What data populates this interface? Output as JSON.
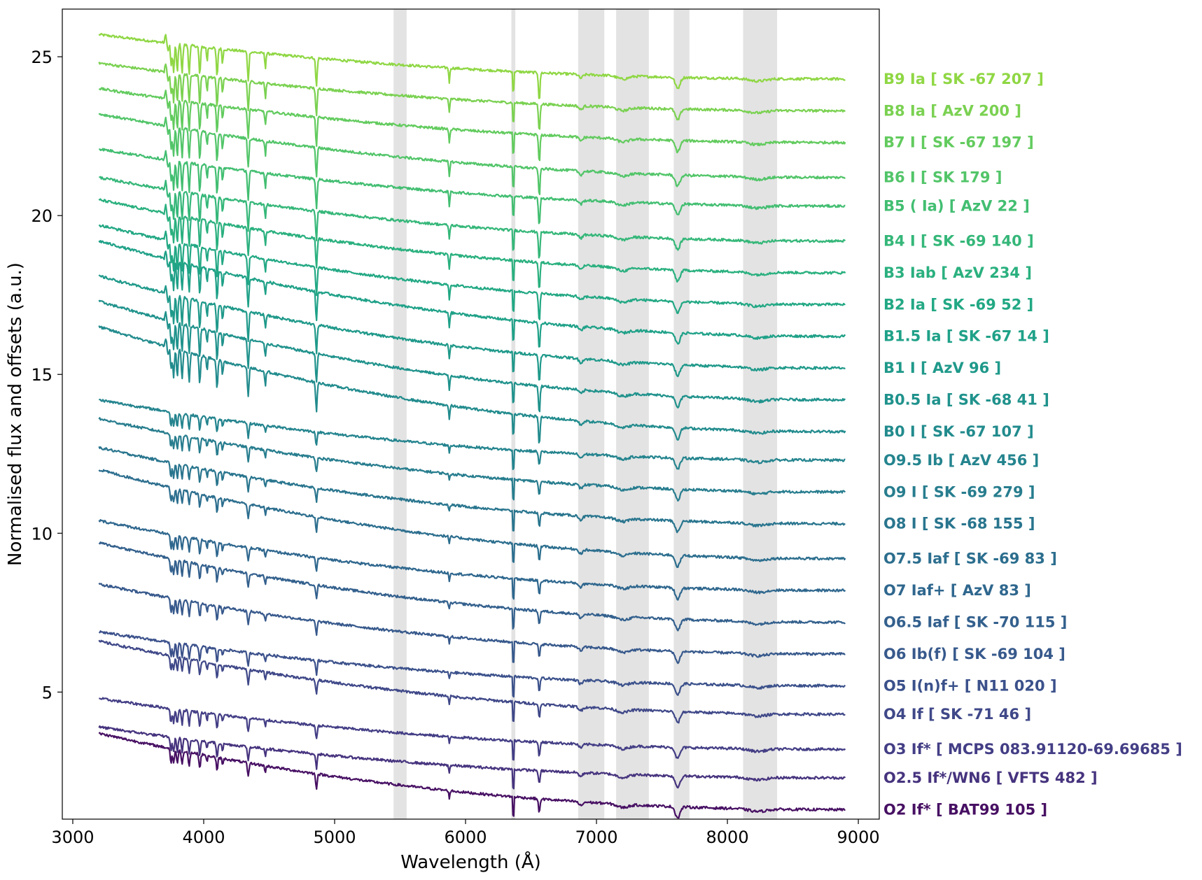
{
  "chart_data": {
    "type": "line",
    "xlabel": "Wavelength (Å)",
    "ylabel": "Normalised flux and offsets (a.u.)",
    "xlim": [
      2920,
      9160
    ],
    "ylim": [
      1.0,
      26.5
    ],
    "x_ticks": [
      3000,
      4000,
      5000,
      6000,
      7000,
      8000,
      9000
    ],
    "y_ticks": [
      5,
      10,
      15,
      20,
      25
    ],
    "grid": false,
    "x_range_data": [
      3200,
      8900
    ],
    "shaded_bands": [
      [
        5450,
        5550
      ],
      [
        6350,
        6380
      ],
      [
        6860,
        7060
      ],
      [
        7150,
        7400
      ],
      [
        7590,
        7710
      ],
      [
        8120,
        8380
      ]
    ],
    "series": [
      {
        "name": "B9 Ia [ SK -67 207 ]",
        "color": "#8fd744",
        "start": 25.7,
        "end": 24.3,
        "balmer": true
      },
      {
        "name": "B8 Ia [ AzV 200 ]",
        "color": "#7ad151",
        "start": 24.8,
        "end": 23.3,
        "balmer": true
      },
      {
        "name": "B7 I [ SK -67 197 ]",
        "color": "#62cb5e",
        "start": 24.0,
        "end": 22.3,
        "balmer": true
      },
      {
        "name": "B6 I [ SK 179 ]",
        "color": "#52c569",
        "start": 23.2,
        "end": 21.2,
        "balmer": true
      },
      {
        "name": "B5 ( Ia) [ AzV 22 ]",
        "color": "#42be71",
        "start": 22.1,
        "end": 20.3,
        "balmer": true
      },
      {
        "name": "B4 I [ SK -69 140 ]",
        "color": "#35b779",
        "start": 21.2,
        "end": 19.2,
        "balmer": true
      },
      {
        "name": "B3 Iab [ AzV 234 ]",
        "color": "#2ab07f",
        "start": 20.5,
        "end": 18.2,
        "balmer": true
      },
      {
        "name": "B2 Ia [ SK -69 52 ]",
        "color": "#22a884",
        "start": 19.7,
        "end": 17.2,
        "balmer": true
      },
      {
        "name": "B1.5 Ia [ SK -67 14 ]",
        "color": "#1fa188",
        "start": 19.2,
        "end": 16.2,
        "balmer": true
      },
      {
        "name": "B1 I [ AzV 96 ]",
        "color": "#1f998a",
        "start": 18.1,
        "end": 15.2,
        "balmer": true
      },
      {
        "name": "B0.5 Ia [ SK -68 41 ]",
        "color": "#20928c",
        "start": 17.3,
        "end": 14.2,
        "balmer": true
      },
      {
        "name": "B0 I [ SK -67 107 ]",
        "color": "#228b8d",
        "start": 16.5,
        "end": 13.2,
        "balmer": true
      },
      {
        "name": "O9.5 Ib [ AzV 456 ]",
        "color": "#24848e",
        "start": 14.2,
        "end": 12.3,
        "balmer": false
      },
      {
        "name": "O9 I [ SK -69 279 ]",
        "color": "#277d8e",
        "start": 13.6,
        "end": 11.3,
        "balmer": false
      },
      {
        "name": "O8 I [ SK -68 155 ]",
        "color": "#29758e",
        "start": 12.7,
        "end": 10.3,
        "balmer": false
      },
      {
        "name": "O7.5 Iaf [ SK -69 83 ]",
        "color": "#2c6e8e",
        "start": 12.0,
        "end": 9.2,
        "balmer": false
      },
      {
        "name": "O7 Iaf+ [ AzV 83 ]",
        "color": "#2f678e",
        "start": 10.4,
        "end": 8.2,
        "balmer": false
      },
      {
        "name": "O6.5 Iaf [ SK -70 115 ]",
        "color": "#33608d",
        "start": 9.7,
        "end": 7.2,
        "balmer": false
      },
      {
        "name": "O6 Ib(f) [ SK -69 104 ]",
        "color": "#37598c",
        "start": 8.4,
        "end": 6.2,
        "balmer": false
      },
      {
        "name": "O5 I(n)f+ [ N11 020 ]",
        "color": "#3b518b",
        "start": 6.9,
        "end": 5.2,
        "balmer": false
      },
      {
        "name": "O4 If [ SK -71 46 ]",
        "color": "#3f4888",
        "start": 6.6,
        "end": 4.3,
        "balmer": false
      },
      {
        "name": "O3 If* [ MCPS 083.91120-69.69685 ]",
        "color": "#433e85",
        "start": 4.8,
        "end": 3.2,
        "balmer": false
      },
      {
        "name": "O2.5 If*/WN6 [ VFTS 482 ]",
        "color": "#46337e",
        "start": 3.9,
        "end": 2.3,
        "balmer": false
      },
      {
        "name": "O2 If* [ BAT99 105 ]",
        "color": "#471063",
        "start": 3.7,
        "end": 1.3,
        "balmer": false
      }
    ]
  }
}
